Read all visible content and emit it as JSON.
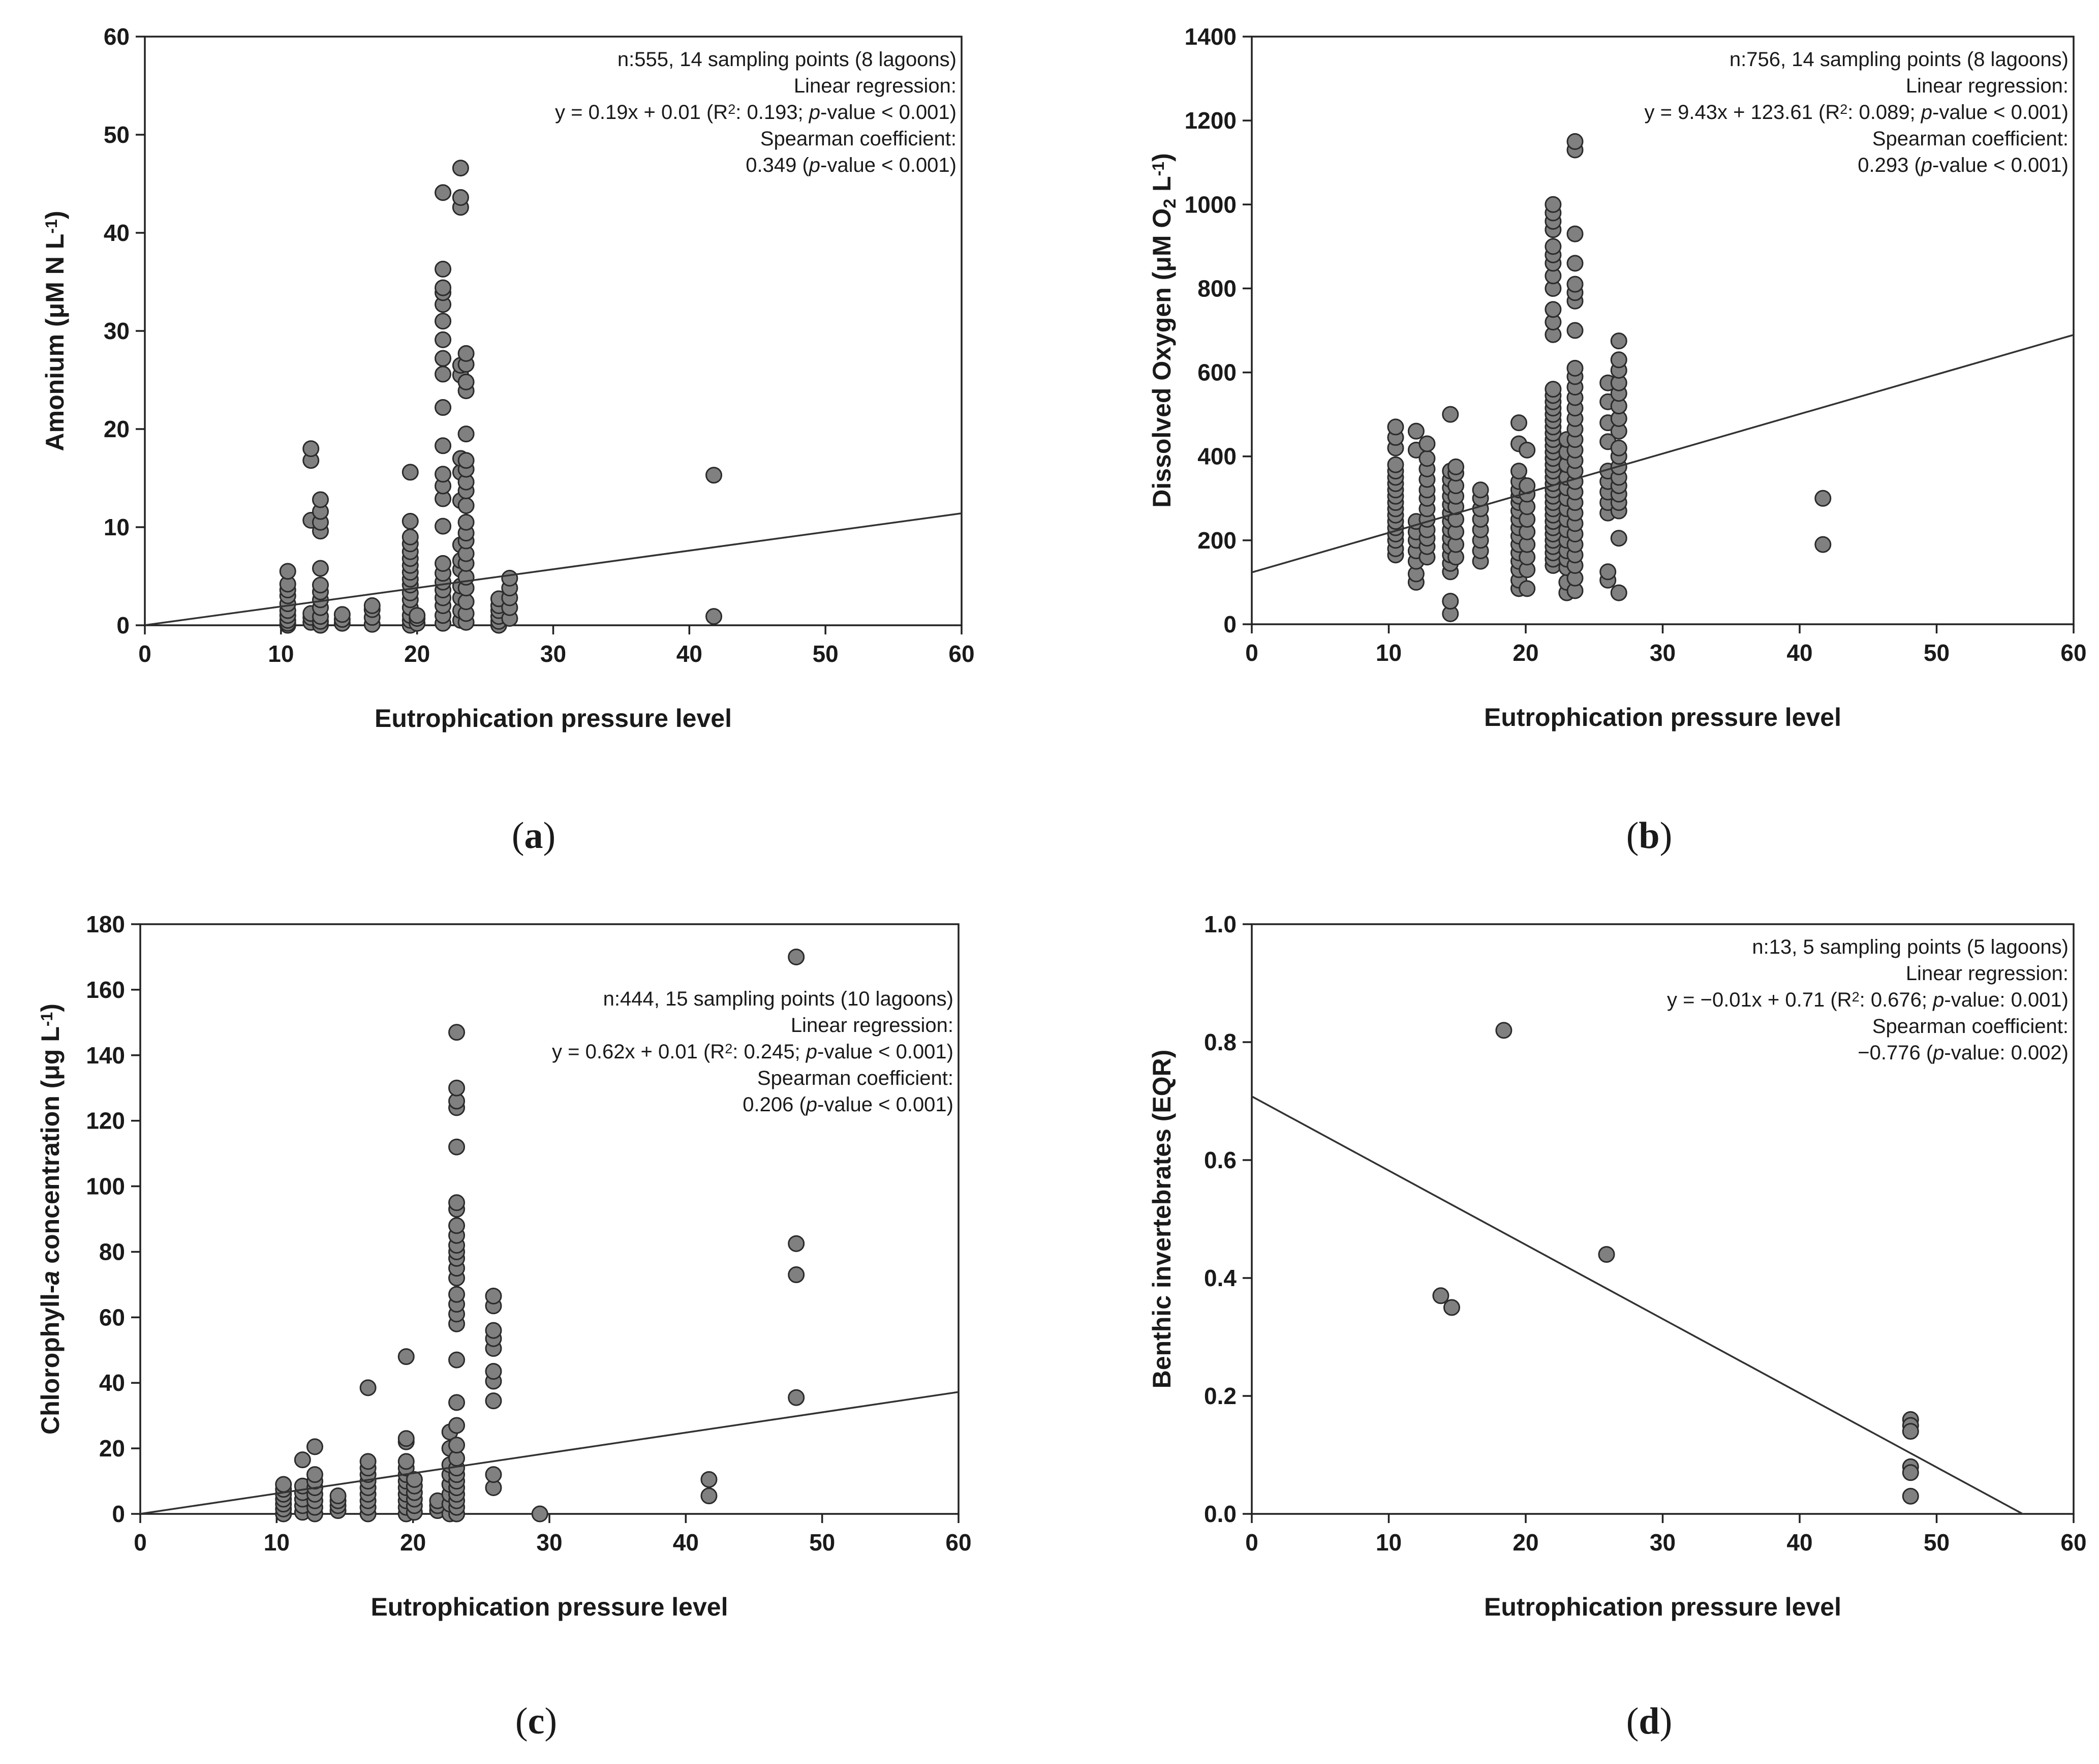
{
  "chart_data": [
    {
      "id": "a",
      "type": "scatter",
      "panel_label": "a",
      "xlabel": "Eutrophication pressure level",
      "ylabel": {
        "main": "Amonium (μM N L",
        "sup": "-1",
        "tail": ")"
      },
      "xlim": [
        0,
        60
      ],
      "ylim": [
        0,
        60
      ],
      "xticks": [
        0,
        10,
        20,
        30,
        40,
        50,
        60
      ],
      "yticks": [
        0,
        10,
        20,
        30,
        40,
        50,
        60
      ],
      "regression": {
        "slope": 0.19,
        "intercept": 0.01
      },
      "annotations": [
        [
          {
            "t": "n:555, 14 sampling points (8 lagoons)"
          }
        ],
        [
          {
            "t": "Linear regression:"
          }
        ],
        [
          {
            "t": "y = 0.19x + 0.01 (R"
          },
          {
            "t": "2",
            "sup": true
          },
          {
            "t": ": 0.193; "
          },
          {
            "t": "p",
            "i": true
          },
          {
            "t": "-value < 0.001)"
          }
        ],
        [
          {
            "t": "Spearman coefficient:"
          }
        ],
        [
          {
            "t": "0.349 ("
          },
          {
            "t": "p",
            "i": true
          },
          {
            "t": "-value < 0.001)"
          }
        ]
      ],
      "groups": [
        {
          "x": 10.5,
          "y": [
            0,
            0.2,
            0.5,
            1.0,
            1.5,
            2.2,
            3.0,
            3.6,
            4.2,
            5.5
          ]
        },
        {
          "x": 12.2,
          "y": [
            0.3,
            0.8,
            1.2,
            10.7,
            16.8,
            18.0
          ]
        },
        {
          "x": 12.9,
          "y": [
            0,
            0.4,
            0.9,
            1.8,
            2.6,
            3.4,
            4.1,
            5.8,
            9.6,
            10.5,
            11.6,
            12.8
          ]
        },
        {
          "x": 14.5,
          "y": [
            0.2,
            0.6,
            1.1
          ]
        },
        {
          "x": 16.7,
          "y": [
            0.1,
            0.8,
            1.6,
            2.0
          ]
        },
        {
          "x": 19.5,
          "y": [
            0,
            0.5,
            1.0,
            1.8,
            2.6,
            3.3,
            4.1,
            4.7,
            5.4,
            6.1,
            6.8,
            7.5,
            8.3,
            9.0,
            10.6,
            15.6
          ]
        },
        {
          "x": 20.0,
          "y": [
            0.2,
            0.7,
            1.0
          ]
        },
        {
          "x": 21.9,
          "y": [
            0.2,
            1.0,
            2.0,
            2.8,
            3.6,
            4.4,
            5.3,
            6.3,
            10.1,
            12.9,
            14.2,
            15.4,
            18.3,
            22.2,
            25.6,
            27.2,
            29.1,
            31.0,
            32.7,
            33.9,
            34.4,
            36.3,
            44.1
          ]
        },
        {
          "x": 23.2,
          "y": [
            0.5,
            1.5,
            2.8,
            4.0,
            5.7,
            6.6,
            8.2,
            12.7,
            15.6,
            17.0,
            25.5,
            26.5,
            42.6,
            43.6,
            46.6
          ]
        },
        {
          "x": 23.6,
          "y": [
            0.3,
            1.2,
            2.4,
            3.8,
            4.9,
            6.3,
            7.3,
            8.6,
            9.4,
            10.5,
            12.2,
            13.7,
            14.6,
            15.9,
            16.8,
            19.5,
            23.9,
            24.8,
            26.6,
            27.7
          ]
        },
        {
          "x": 26.0,
          "y": [
            0,
            0.4,
            0.9,
            1.5,
            2.0,
            2.7
          ]
        },
        {
          "x": 26.8,
          "y": [
            0.7,
            1.8,
            2.8,
            3.8,
            4.8
          ]
        },
        {
          "x": 41.8,
          "y": [
            15.3,
            0.9
          ]
        }
      ]
    },
    {
      "id": "b",
      "type": "scatter",
      "panel_label": "b",
      "xlabel": "Eutrophication pressure level",
      "ylabel": {
        "main": "Dissolved Oxygen (μM O",
        "sub": "2",
        "mid": " L",
        "sup": "-1",
        "tail": ")"
      },
      "xlim": [
        0,
        60
      ],
      "ylim": [
        0,
        1400
      ],
      "xticks": [
        0,
        10,
        20,
        30,
        40,
        50,
        60
      ],
      "yticks": [
        0,
        200,
        400,
        600,
        800,
        1000,
        1200,
        1400
      ],
      "regression": {
        "slope": 9.43,
        "intercept": 123.61
      },
      "annotations": [
        [
          {
            "t": "n:756, 14 sampling points (8 lagoons)"
          }
        ],
        [
          {
            "t": "Linear regression:"
          }
        ],
        [
          {
            "t": "y = 9.43x + 123.61 (R"
          },
          {
            "t": "2",
            "sup": true
          },
          {
            "t": ": 0.089; "
          },
          {
            "t": "p",
            "i": true
          },
          {
            "t": "-value < 0.001)"
          }
        ],
        [
          {
            "t": "Spearman coefficient:"
          }
        ],
        [
          {
            "t": "0.293 ("
          },
          {
            "t": "p",
            "i": true
          },
          {
            "t": "-value < 0.001)"
          }
        ]
      ],
      "groups": [
        {
          "x": 10.5,
          "y": [
            165,
            180,
            200,
            215,
            230,
            245,
            260,
            275,
            290,
            305,
            320,
            335,
            350,
            365,
            380,
            420,
            445,
            470
          ]
        },
        {
          "x": 12.0,
          "y": [
            100,
            120,
            150,
            175,
            200,
            220,
            245,
            415,
            460
          ]
        },
        {
          "x": 12.8,
          "y": [
            160,
            185,
            205,
            225,
            250,
            275,
            300,
            320,
            345,
            370,
            395,
            430
          ]
        },
        {
          "x": 14.5,
          "y": [
            25,
            55,
            125,
            145,
            165,
            185,
            205,
            225,
            245,
            265,
            285,
            305,
            325,
            345,
            365,
            500
          ]
        },
        {
          "x": 14.9,
          "y": [
            160,
            190,
            220,
            250,
            280,
            305,
            330,
            360,
            375
          ]
        },
        {
          "x": 16.7,
          "y": [
            150,
            175,
            200,
            225,
            250,
            275,
            300,
            320
          ]
        },
        {
          "x": 19.5,
          "y": [
            85,
            105,
            130,
            150,
            170,
            190,
            210,
            230,
            250,
            270,
            290,
            305,
            320,
            340,
            365,
            430,
            480
          ]
        },
        {
          "x": 20.1,
          "y": [
            85,
            130,
            160,
            190,
            220,
            250,
            280,
            310,
            330,
            415
          ]
        },
        {
          "x": 22.0,
          "y": [
            140,
            155,
            170,
            185,
            200,
            215,
            230,
            245,
            260,
            275,
            290,
            305,
            320,
            335,
            350,
            365,
            380,
            395,
            410,
            425,
            440,
            455,
            470,
            485,
            500,
            515,
            530,
            545,
            560,
            690,
            720,
            750,
            800,
            830,
            860,
            880,
            900,
            940,
            960,
            980,
            1000
          ]
        },
        {
          "x": 23.0,
          "y": [
            75,
            100,
            135,
            155,
            175,
            200,
            225,
            250,
            275,
            300,
            325,
            350,
            380,
            410,
            440
          ]
        },
        {
          "x": 23.6,
          "y": [
            80,
            110,
            140,
            165,
            190,
            215,
            240,
            265,
            290,
            315,
            340,
            365,
            390,
            415,
            440,
            465,
            490,
            515,
            540,
            565,
            590,
            610,
            700,
            770,
            790,
            810,
            860,
            930,
            1130,
            1150
          ]
        },
        {
          "x": 26.0,
          "y": [
            105,
            125,
            265,
            290,
            315,
            340,
            365,
            435,
            480,
            530,
            575
          ]
        },
        {
          "x": 26.8,
          "y": [
            75,
            205,
            270,
            290,
            310,
            330,
            350,
            375,
            400,
            420,
            460,
            490,
            520,
            550,
            575,
            605,
            630,
            675
          ]
        },
        {
          "x": 41.7,
          "y": [
            300,
            190
          ]
        }
      ]
    },
    {
      "id": "c",
      "type": "scatter",
      "panel_label": "c",
      "xlabel": "Eutrophication pressure level",
      "ylabel": {
        "main": "Chlorophyll-",
        "ital": "a",
        "mid": " concentration (μg L",
        "sup": "-1",
        "tail": ")"
      },
      "xlim": [
        0,
        60
      ],
      "ylim": [
        0,
        180
      ],
      "xticks": [
        0,
        10,
        20,
        30,
        40,
        50,
        60
      ],
      "yticks": [
        0,
        20,
        40,
        60,
        80,
        100,
        120,
        140,
        160,
        180
      ],
      "regression": {
        "slope": 0.62,
        "intercept": 0.01
      },
      "annotations": [
        [
          {
            "t": "n:444, 15 sampling points (10 lagoons)"
          }
        ],
        [
          {
            "t": "Linear regression:"
          }
        ],
        [
          {
            "t": "y = 0.62x + 0.01 (R"
          },
          {
            "t": "2",
            "sup": true
          },
          {
            "t": ": 0.245; "
          },
          {
            "t": "p",
            "i": true
          },
          {
            "t": "-value < 0.001)"
          }
        ],
        [
          {
            "t": "Spearman coefficient:"
          }
        ],
        [
          {
            "t": "0.206 ("
          },
          {
            "t": "p",
            "i": true
          },
          {
            "t": "-value < 0.001)"
          }
        ]
      ],
      "groups": [
        {
          "x": 10.5,
          "y": [
            0,
            1.5,
            3.0,
            4.5,
            6.0,
            7.5,
            9.0
          ]
        },
        {
          "x": 11.9,
          "y": [
            0.5,
            2.5,
            4.5,
            6.5,
            8.5,
            16.5
          ]
        },
        {
          "x": 12.8,
          "y": [
            0,
            2,
            4,
            6,
            8,
            10,
            12,
            20.5
          ]
        },
        {
          "x": 14.5,
          "y": [
            1,
            2.5,
            4,
            5.5
          ]
        },
        {
          "x": 16.7,
          "y": [
            0,
            2,
            4,
            6,
            8,
            10,
            12,
            14,
            16,
            38.5
          ]
        },
        {
          "x": 19.5,
          "y": [
            0,
            2,
            4,
            6,
            8,
            10,
            12,
            14,
            16,
            22,
            23,
            48
          ]
        },
        {
          "x": 20.1,
          "y": [
            0.5,
            2.5,
            4.5,
            6.5,
            8.5,
            10.5
          ]
        },
        {
          "x": 21.8,
          "y": [
            1,
            2.5,
            4
          ]
        },
        {
          "x": 22.7,
          "y": [
            0,
            3,
            6,
            9,
            12,
            15,
            20,
            25
          ]
        },
        {
          "x": 23.2,
          "y": [
            0,
            2,
            4,
            6,
            8,
            10,
            12,
            14,
            17,
            21,
            27,
            34,
            47,
            58,
            61,
            64,
            67,
            72,
            75,
            78,
            80,
            82,
            85,
            88,
            93,
            95,
            112,
            124,
            126,
            130,
            147
          ]
        },
        {
          "x": 25.9,
          "y": [
            8,
            12,
            34.5,
            40.5,
            43.5,
            50.5,
            53.5,
            56,
            63.5,
            66.5
          ]
        },
        {
          "x": 29.3,
          "y": [
            0
          ]
        },
        {
          "x": 41.7,
          "y": [
            10.5,
            5.5
          ]
        },
        {
          "x": 48.1,
          "y": [
            170,
            82.5,
            73,
            35.5
          ]
        }
      ]
    },
    {
      "id": "d",
      "type": "scatter",
      "panel_label": "d",
      "xlabel": "Eutrophication pressure level",
      "ylabel": {
        "main": "Benthic invertebrates (EQR)"
      },
      "xlim": [
        0,
        60
      ],
      "ylim": [
        0,
        1.0
      ],
      "xticks": [
        0,
        10,
        20,
        30,
        40,
        50,
        60
      ],
      "yticks": [
        0,
        0.2,
        0.4,
        0.6,
        0.8,
        1.0
      ],
      "ytick_labels": [
        "0.0",
        "0.2",
        "0.4",
        "0.6",
        "0.8",
        "1.0"
      ],
      "regression": {
        "slope": -0.01258,
        "intercept": 0.708
      },
      "annotations": [
        [
          {
            "t": "n:13, 5 sampling points (5 lagoons)"
          }
        ],
        [
          {
            "t": "Linear regression:"
          }
        ],
        [
          {
            "t": "y = −0.01x + 0.71 (R"
          },
          {
            "t": "2",
            "sup": true
          },
          {
            "t": ": 0.676; "
          },
          {
            "t": "p",
            "i": true
          },
          {
            "t": "-value: 0.001)"
          }
        ],
        [
          {
            "t": "Spearman coefficient:"
          }
        ],
        [
          {
            "t": "−0.776 ("
          },
          {
            "t": "p",
            "i": true
          },
          {
            "t": "-value: 0.002)"
          }
        ]
      ],
      "groups": [
        {
          "x": 13.8,
          "y": [
            0.37
          ]
        },
        {
          "x": 14.6,
          "y": [
            0.35
          ]
        },
        {
          "x": 18.4,
          "y": [
            0.82
          ]
        },
        {
          "x": 25.9,
          "y": [
            0.44
          ]
        },
        {
          "x": 48.1,
          "y": [
            0.16,
            0.15,
            0.14,
            0.08,
            0.07,
            0.03
          ]
        }
      ]
    }
  ]
}
